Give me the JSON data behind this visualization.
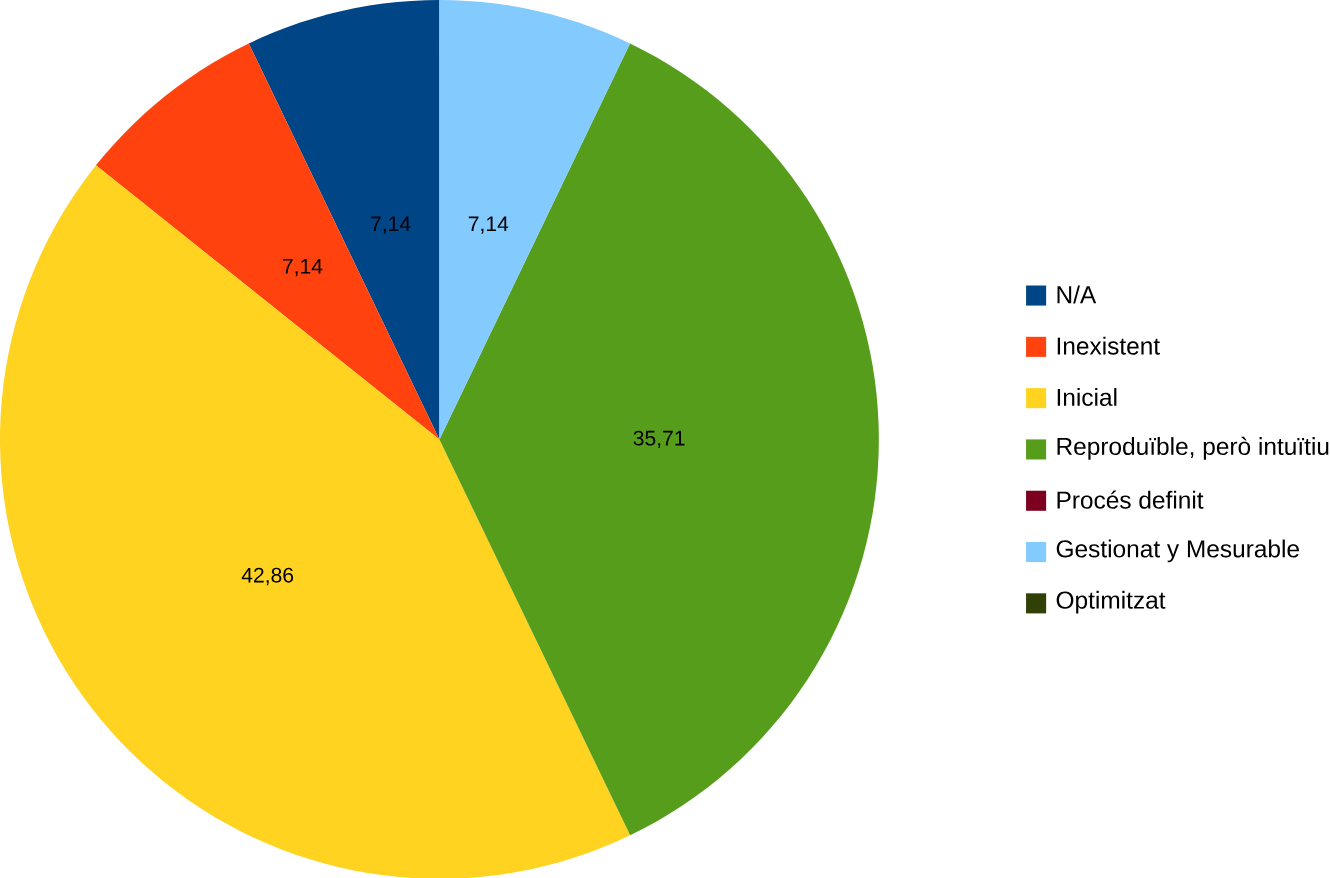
{
  "chart_data": {
    "type": "pie",
    "categories": [
      "N/A",
      "Inexistent",
      "Inicial",
      "Reproduïble, però intuïtiu",
      "Procés definit",
      "Gestionat y Mesurable",
      "Optimitzat"
    ],
    "values": [
      7.14,
      7.14,
      42.86,
      35.71,
      0,
      7.14,
      0
    ],
    "colors": [
      "#004586",
      "#ff420e",
      "#ffd320",
      "#579d1c",
      "#7e0021",
      "#83caff",
      "#314004"
    ],
    "value_labels": [
      "7,14",
      "7,14",
      "42,86",
      "35,71",
      null,
      "7,14",
      null
    ],
    "legend": "right"
  }
}
